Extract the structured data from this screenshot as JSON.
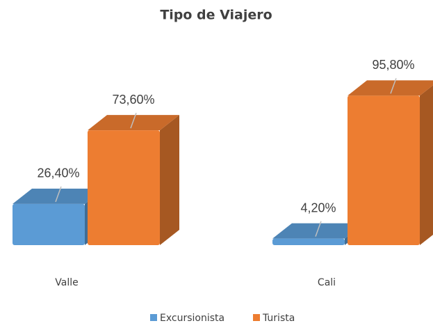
{
  "chart_data": {
    "type": "bar3d",
    "title": "Tipo de Viajero",
    "categories": [
      "Valle",
      "Cali"
    ],
    "series": [
      {
        "name": "Excursionista",
        "color": "#5b9bd5",
        "values": [
          26.4,
          4.2
        ],
        "value_labels": [
          "26,40%",
          "4,20%"
        ]
      },
      {
        "name": "Turista",
        "color": "#ed7d31",
        "values": [
          73.6,
          95.8
        ],
        "value_labels": [
          "73,60%",
          "95,80%"
        ]
      }
    ],
    "legend": "bottom"
  }
}
